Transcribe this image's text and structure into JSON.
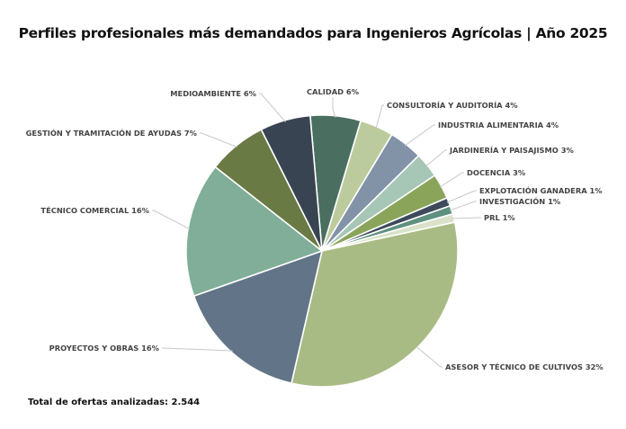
{
  "chart_data": {
    "type": "pie",
    "title": "Perfiles profesionales más demandados para Ingenieros Agrícolas | Año 2025",
    "note": "Total de ofertas analizadas: 2.544",
    "unit": "%",
    "slices": [
      {
        "label": "CALIDAD",
        "value": 6,
        "color": "#4a6f60"
      },
      {
        "label": "CONSULTORÍA Y AUDITORÍA",
        "value": 4,
        "color": "#bccb9e"
      },
      {
        "label": "INDUSTRIA ALIMENTARIA",
        "value": 4,
        "color": "#8293a8"
      },
      {
        "label": "JARDINERÍA Y PAISAJISMO",
        "value": 3,
        "color": "#a6c6b6"
      },
      {
        "label": "DOCENCIA",
        "value": 3,
        "color": "#8aa45a"
      },
      {
        "label": "EXPLOTACIÓN GANADERA",
        "value": 1,
        "color": "#3e4a5c"
      },
      {
        "label": "INVESTIGACIÓN",
        "value": 1,
        "color": "#5e9080"
      },
      {
        "label": "PRL",
        "value": 1,
        "color": "#d9e2c8"
      },
      {
        "label": "ASESOR Y TÉCNICO DE CULTIVOS",
        "value": 32,
        "color": "#a9bb84"
      },
      {
        "label": "PROYECTOS Y OBRAS",
        "value": 16,
        "color": "#627588"
      },
      {
        "label": "TÉCNICO COMERCIAL",
        "value": 16,
        "color": "#80ae98"
      },
      {
        "label": "GESTIÓN Y TRAMITACIÓN DE AYUDAS",
        "value": 7,
        "color": "#6a7a44"
      },
      {
        "label": "MEDIOAMBIENTE",
        "value": 6,
        "color": "#394452"
      }
    ],
    "display_labels": [
      "CALIDAD 6%",
      "CONSULTORÍA Y AUDITORÍA 4%",
      "INDUSTRIA ALIMENTARIA 4%",
      "JARDINERÍA Y PAISAJISMO 3%",
      "DOCENCIA 3%",
      "EXPLOTACIÓN GANADERA 1%",
      "INVESTIGACIÓN 1%",
      "PRL 1%",
      "ASESOR Y TÉCNICO DE CULTIVOS 32%",
      "PROYECTOS Y OBRAS 16%",
      "TÉCNICO COMERCIAL 16%",
      "GESTIÓN Y TRAMITACIÓN DE AYUDAS 7%",
      "MEDIOAMBIENTE 6%"
    ],
    "legend": "none"
  }
}
